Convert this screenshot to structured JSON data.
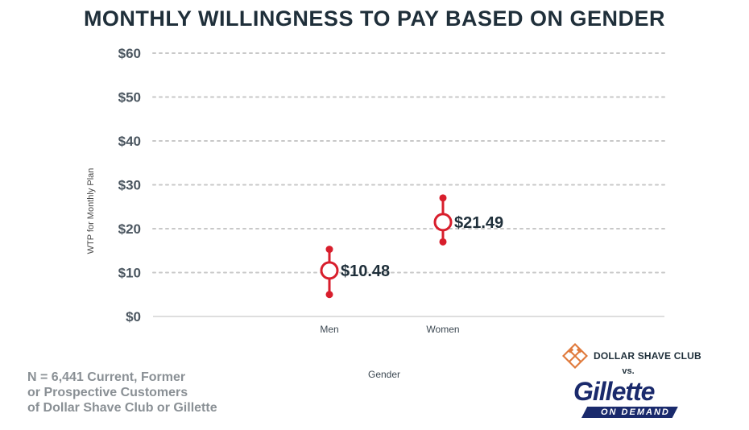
{
  "title": "MONTHLY WILLINGNESS TO PAY BASED ON GENDER",
  "note_lines": [
    "N = 6,441 Current, Former",
    "or Prospective Customers",
    "of Dollar Shave Club or Gillette"
  ],
  "brands": {
    "dsc": "DOLLAR SHAVE CLUB",
    "vs": "vs.",
    "gillette": "Gillette",
    "on_demand": "ON DEMAND"
  },
  "colors": {
    "accent": "#d81e2c",
    "dark": "#1f2f3a",
    "grid": "#c8c8c8",
    "dsc_orange": "#e07a3c",
    "gillette_blue": "#1a2a6c"
  },
  "chart_data": {
    "type": "scatter",
    "title": "MONTHLY WILLINGNESS TO PAY BASED ON GENDER",
    "xlabel": "Gender",
    "ylabel": "WTP for Monthly Plan",
    "ylim": [
      0,
      60
    ],
    "yticks": [
      "$0",
      "$10",
      "$20",
      "$30",
      "$40",
      "$50",
      "$60"
    ],
    "ytick_values": [
      0,
      10,
      20,
      30,
      40,
      50,
      60
    ],
    "grid": true,
    "categories": [
      "Men",
      "Women"
    ],
    "values": [
      10.48,
      21.49
    ],
    "value_labels": [
      "$10.48",
      "$21.49"
    ],
    "error_low": [
      5,
      17
    ],
    "error_high": [
      15.3,
      27
    ]
  }
}
